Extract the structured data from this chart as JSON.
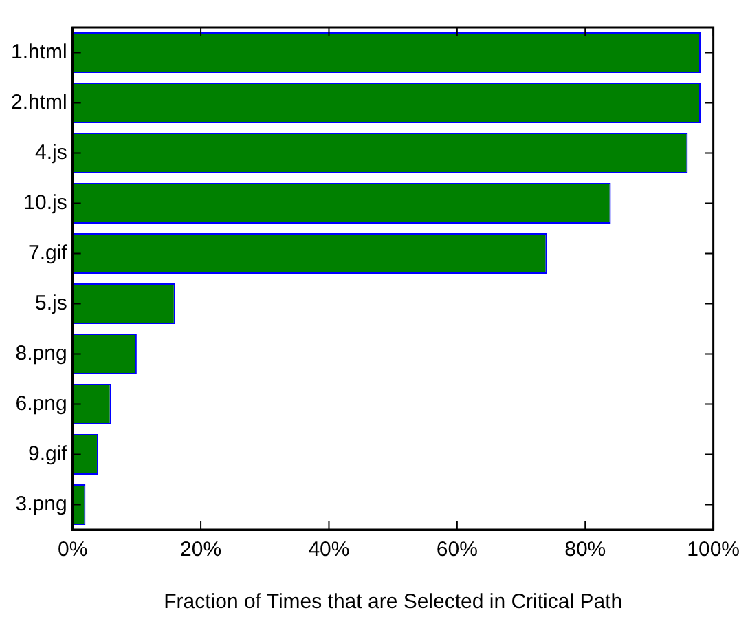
{
  "chart_data": {
    "type": "bar",
    "orientation": "horizontal",
    "xlabel": "Fraction of Times that are Selected in Critical Path",
    "categories": [
      "1.html",
      "2.html",
      "4.js",
      "10.js",
      "7.gif",
      "5.js",
      "8.png",
      "6.png",
      "9.gif",
      "3.png"
    ],
    "values": [
      98,
      98,
      96,
      84,
      74,
      16,
      10,
      6,
      4,
      2
    ],
    "color": "#008000",
    "xlim": [
      0,
      100
    ],
    "xticks": [
      {
        "value": 0,
        "label": "0%"
      },
      {
        "value": 20,
        "label": "20%"
      },
      {
        "value": 40,
        "label": "40%"
      },
      {
        "value": 60,
        "label": "60%"
      },
      {
        "value": 80,
        "label": "80%"
      },
      {
        "value": 100,
        "label": "100%"
      }
    ],
    "grid": false,
    "legend": false
  }
}
